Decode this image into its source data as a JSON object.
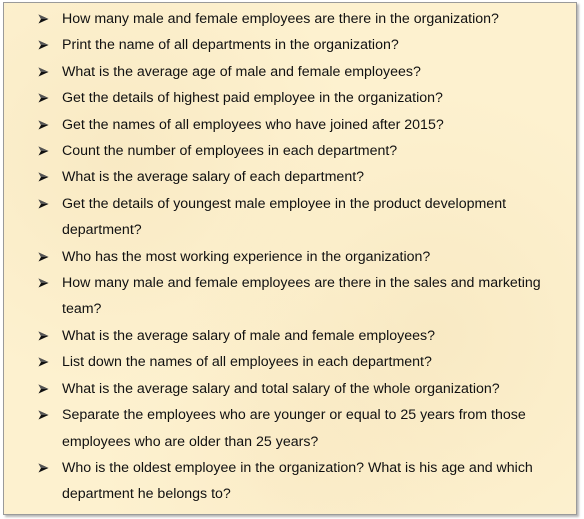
{
  "questions": [
    "How many male and female employees are there in the organization?",
    "Print the name of all departments in the organization?",
    "What is the average age of male and female employees?",
    "Get the details of highest paid employee in the organization?",
    "Get the names of all employees who have joined after 2015?",
    "Count the number of employees in each department?",
    "What is the average salary of each department?",
    "Get the details of youngest male employee in the product development department?",
    "Who has the most working experience in the organization?",
    "How many male and female employees are there in the sales and marketing team?",
    "What is the average salary of male and female employees?",
    "List down the names of all employees in each department?",
    "What is the average salary and total salary of the whole organization?",
    "Separate the employees who are younger or equal to 25 years from those employees who are older than 25 years?",
    "Who is the oldest employee in the organization? What is his age and which department he belongs to?"
  ],
  "icons": {
    "bullet": "arrowhead-bullet-icon"
  },
  "colors": {
    "panel_background": "#fdf1cf",
    "text": "#111111"
  }
}
